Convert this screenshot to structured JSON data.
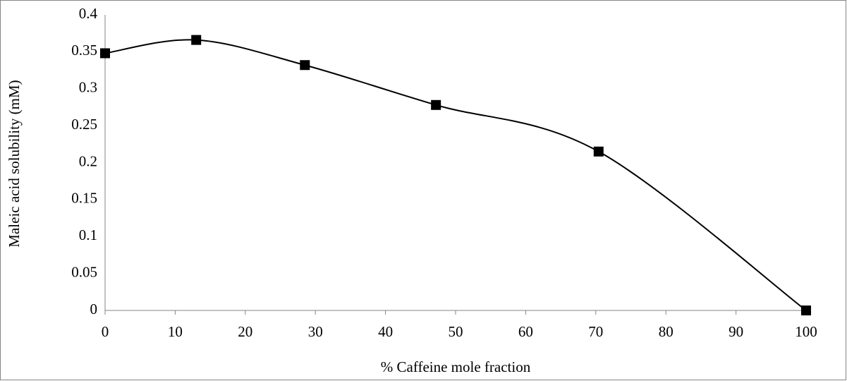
{
  "chart_data": {
    "type": "line",
    "x_label": "% Caffeine mole fraction",
    "y_label": "Maleic acid solubility (mM)",
    "x": [
      0,
      13,
      28.5,
      47.2,
      70.4,
      100
    ],
    "series": [
      {
        "name": "Maleic acid solubility",
        "color": "#000000",
        "values": [
          0.348,
          0.366,
          0.332,
          0.278,
          0.215,
          0
        ]
      }
    ],
    "smooth": true,
    "marker": "square",
    "grid": false,
    "xlim": [
      0,
      100
    ],
    "xticks": [
      0,
      10,
      20,
      30,
      40,
      50,
      60,
      70,
      80,
      90,
      100
    ],
    "ylim": [
      0,
      0.4
    ],
    "yticks": [
      0,
      0.05,
      0.1,
      0.15,
      0.2,
      0.25,
      0.3,
      0.35,
      0.4
    ]
  }
}
